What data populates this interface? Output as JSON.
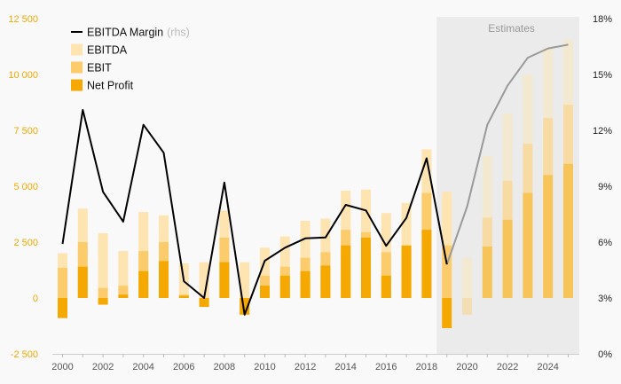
{
  "chart_data": {
    "type": "bar",
    "x": [
      2000,
      2001,
      2002,
      2003,
      2004,
      2005,
      2006,
      2007,
      2008,
      2009,
      2010,
      2011,
      2012,
      2013,
      2014,
      2015,
      2016,
      2017,
      2018,
      2019,
      2020,
      2021,
      2022,
      2023,
      2024,
      2025
    ],
    "series": [
      {
        "name": "EBITDA",
        "type": "bar",
        "values": [
          2000,
          4000,
          2900,
          2100,
          3850,
          3700,
          1550,
          1600,
          3900,
          1600,
          2250,
          2750,
          3450,
          3550,
          4800,
          4850,
          3800,
          4250,
          6650,
          4750,
          1800,
          6350,
          8250,
          10000,
          11200,
          11550
        ]
      },
      {
        "name": "EBIT",
        "type": "bar",
        "values": [
          1350,
          2500,
          450,
          550,
          2100,
          2500,
          150,
          -100,
          2700,
          -350,
          1000,
          1400,
          1800,
          2050,
          3050,
          2950,
          2050,
          2250,
          4700,
          2350,
          -750,
          3600,
          5250,
          6900,
          8050,
          8650
        ]
      },
      {
        "name": "Net Profit",
        "type": "bar",
        "values": [
          -900,
          1400,
          -300,
          150,
          1200,
          1650,
          100,
          -400,
          1600,
          -750,
          550,
          1000,
          1200,
          1450,
          2350,
          2700,
          1000,
          2350,
          3050,
          -1350,
          null,
          2300,
          3500,
          4700,
          5500,
          6000
        ]
      },
      {
        "name": "EBITDA Margin",
        "type": "line",
        "axis": "right",
        "unit": "%",
        "values": [
          5.9,
          13.1,
          8.7,
          7.1,
          12.3,
          10.8,
          3.9,
          3.0,
          9.2,
          2.1,
          5.0,
          5.7,
          6.2,
          6.25,
          8.0,
          7.7,
          5.8,
          7.3,
          10.5,
          4.8,
          7.9,
          12.3,
          14.4,
          15.9,
          16.4,
          16.6
        ]
      }
    ],
    "estimates_from": 2019,
    "estimates_label": "Estimates",
    "legend": [
      {
        "label": "EBITDA Margin",
        "suffix": "(rhs)",
        "kind": "line"
      },
      {
        "label": "EBITDA",
        "kind": "box"
      },
      {
        "label": "EBIT",
        "kind": "box"
      },
      {
        "label": "Net Profit",
        "kind": "box"
      }
    ],
    "legend_position": "top-left",
    "ylim": [
      -2500,
      12500
    ],
    "y_ticks": [
      -2500,
      0,
      2500,
      5000,
      7500,
      10000,
      12500
    ],
    "y_tick_labels": [
      "-2 500",
      "0",
      "2 500",
      "5 000",
      "7 500",
      "10 000",
      "12 500"
    ],
    "y2lim": [
      0,
      18
    ],
    "y2_ticks": [
      0,
      3,
      6,
      9,
      12,
      15,
      18
    ],
    "y2_tick_labels": [
      "0%",
      "3%",
      "6%",
      "9%",
      "12%",
      "15%",
      "18%"
    ],
    "x_tick_labels": [
      "2000",
      "2002",
      "2004",
      "2006",
      "2008",
      "2010",
      "2012",
      "2014",
      "2016",
      "2018",
      "2020",
      "2022",
      "2024"
    ],
    "colors": {
      "ebitda": "#fde4b0",
      "ebit": "#fccc6c",
      "net_profit": "#f5a800",
      "margin_line": "#000000",
      "margin_line_estimate": "#999999",
      "estimate_shade": "#ebebeb",
      "left_axis_text": "#f3a800",
      "background": "#f9f9f9"
    },
    "grid": false
  }
}
